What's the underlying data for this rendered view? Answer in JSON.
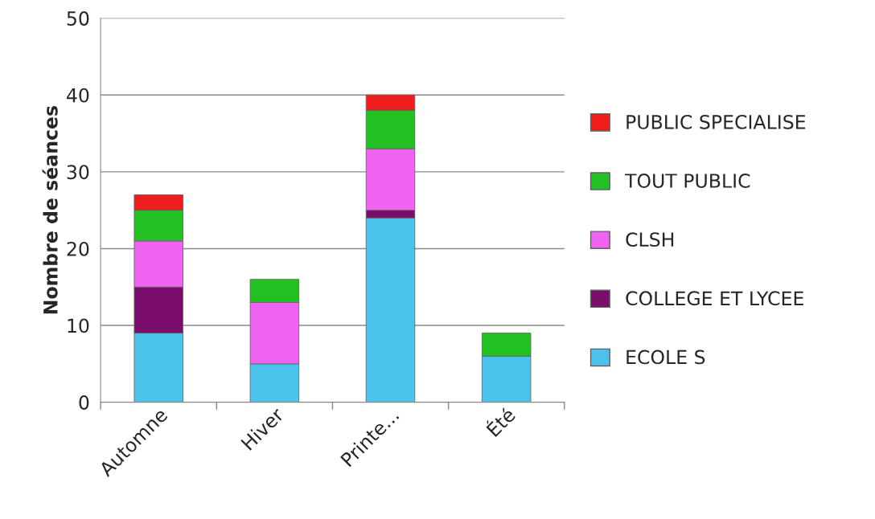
{
  "chart_data": {
    "type": "bar",
    "stacked": true,
    "ylabel": "Nombre de séances",
    "categories": [
      "Automne",
      "Hiver",
      "Printe...",
      "Été"
    ],
    "series": [
      {
        "name": "ECOLE S",
        "color": "#4cc3ec",
        "values": [
          9,
          5,
          24,
          6
        ]
      },
      {
        "name": "COLLEGE ET LYCEE",
        "color": "#7a0c6c",
        "values": [
          6,
          null,
          1,
          null
        ]
      },
      {
        "name": "CLSH",
        "color": "#f062f0",
        "values": [
          6,
          8,
          8,
          null
        ]
      },
      {
        "name": "TOUT PUBLIC",
        "color": "#22c022",
        "values": [
          4,
          3,
          5,
          3
        ]
      },
      {
        "name": "PUBLIC SPECIALISE",
        "color": "#ee1c1c",
        "values": [
          2,
          null,
          2,
          null
        ]
      }
    ],
    "ylim": [
      0,
      50
    ],
    "yticks": [
      0,
      10,
      20,
      30,
      40,
      50
    ],
    "grid": "y",
    "legend": "right"
  }
}
